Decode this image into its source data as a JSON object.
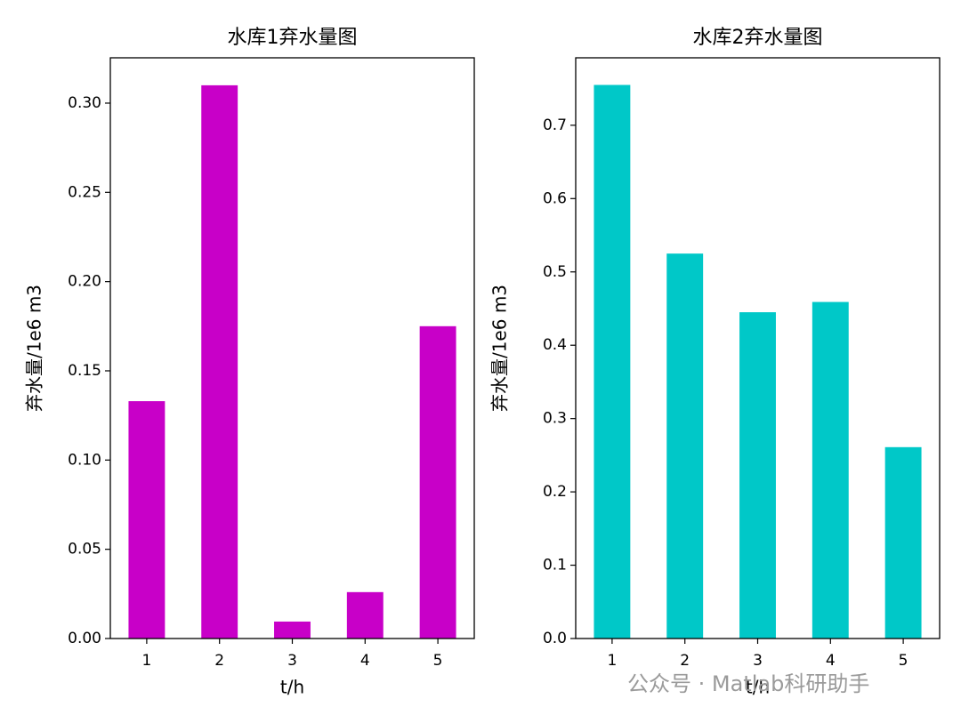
{
  "chart_data": [
    {
      "type": "bar",
      "title": "水库1弃水量图",
      "xlabel": "t/h",
      "ylabel": "弃水量/1e6 m3",
      "categories": [
        "1",
        "2",
        "3",
        "4",
        "5"
      ],
      "values": [
        0.133,
        0.31,
        0.0095,
        0.026,
        0.175
      ],
      "color": "#c800c8",
      "ylim": [
        0,
        0.3254
      ],
      "yticks": [
        {
          "value": 0,
          "label": "0.00"
        },
        0.05,
        {
          "value": 0.1,
          "label": "0.10"
        },
        0.15,
        {
          "value": 0.2,
          "label": "0.20"
        },
        0.25,
        {
          "value": 0.3,
          "label": "0.30"
        }
      ],
      "grid": false
    },
    {
      "type": "bar",
      "title": "水库2弃水量图",
      "xlabel": "t/h",
      "ylabel": "弃水量/1e6 m3",
      "categories": [
        "1",
        "2",
        "3",
        "4",
        "5"
      ],
      "values": [
        0.755,
        0.525,
        0.445,
        0.459,
        0.261
      ],
      "color": "#00c8c8",
      "ylim": [
        0,
        0.792
      ],
      "yticks": [
        {
          "value": 0,
          "label": "0.0"
        },
        0.1,
        0.2,
        0.3,
        0.4,
        0.5,
        0.6,
        0.7
      ],
      "grid": false
    }
  ],
  "watermark": "公众号 · Matlab科研助手"
}
